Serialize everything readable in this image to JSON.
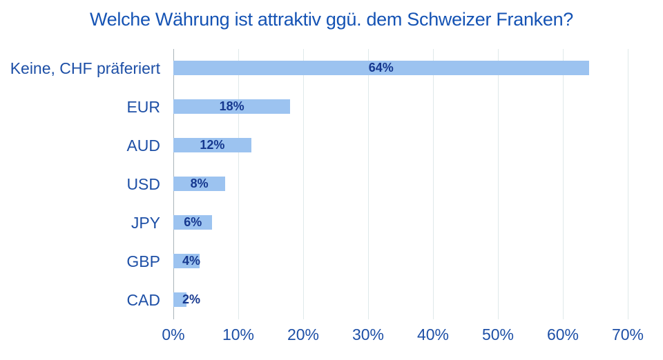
{
  "title": "Welche Währung ist attraktiv ggü. dem Schweizer Franken?",
  "chart_data": {
    "type": "bar",
    "orientation": "horizontal",
    "title": "Welche Währung ist attraktiv ggü. dem Schweizer Franken?",
    "categories": [
      "Keine, CHF präferiert",
      "EUR",
      "AUD",
      "USD",
      "JPY",
      "GBP",
      "CAD"
    ],
    "values": [
      64,
      18,
      12,
      8,
      6,
      4,
      2
    ],
    "value_labels": [
      "64%",
      "18%",
      "12%",
      "8%",
      "6%",
      "4%",
      "2%"
    ],
    "xlabel": "",
    "ylabel": "",
    "xlim": [
      0,
      70
    ],
    "x_tick_values": [
      0,
      10,
      20,
      30,
      40,
      50,
      60,
      70
    ],
    "x_tick_labels": [
      "0%",
      "10%",
      "20%",
      "30%",
      "40%",
      "50%",
      "60%",
      "70%"
    ],
    "grid": "vertical gridlines on",
    "legend": "none",
    "value_label_position": "center of bar"
  },
  "colors": {
    "background": "#ffffff",
    "title": "#1553b4",
    "category_label": "#1d4fa6",
    "value_label": "#16388f",
    "bar_fill": "#9cc3f0",
    "gridline": "#dfe9ea",
    "axis_line": "#a9b4ba"
  }
}
